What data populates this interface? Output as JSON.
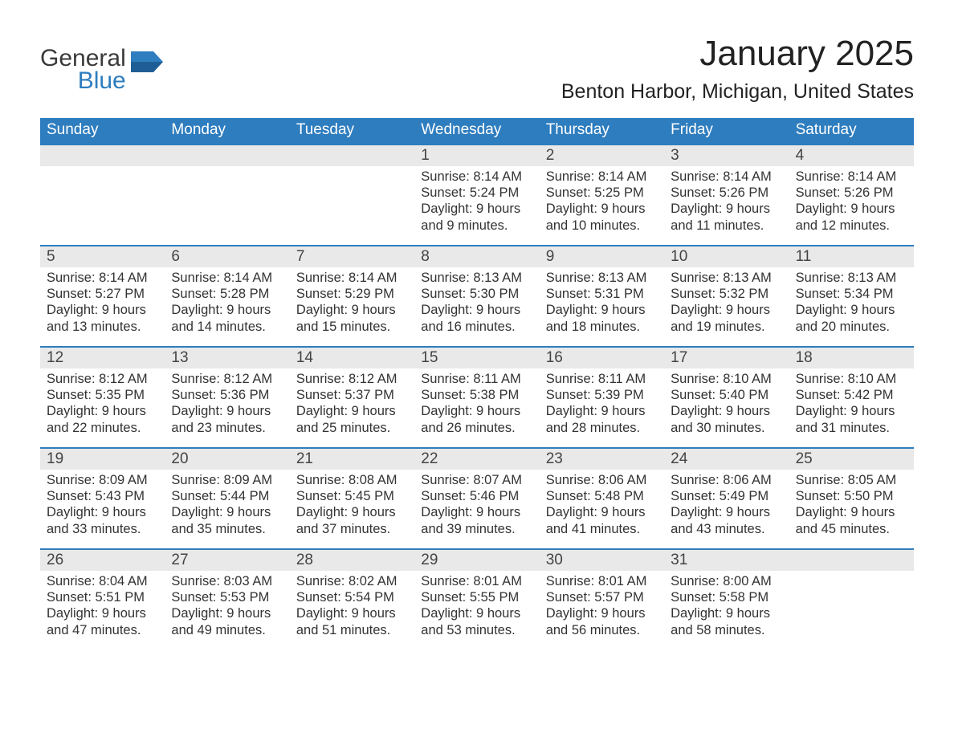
{
  "brand": {
    "word1": "General",
    "word2": "Blue"
  },
  "title": "January 2025",
  "subtitle": "Benton Harbor, Michigan, United States",
  "colors": {
    "header_bg": "#2e7dbf",
    "header_text": "#ffffff",
    "row_border": "#2e7dbf",
    "daynum_bg": "#e9e9e9",
    "body_text": "#333333",
    "page_bg": "#ffffff"
  },
  "font_sizes_pt": {
    "title": 33,
    "subtitle": 19,
    "weekday": 14,
    "daynum": 14,
    "body": 12
  },
  "weekdays": [
    "Sunday",
    "Monday",
    "Tuesday",
    "Wednesday",
    "Thursday",
    "Friday",
    "Saturday"
  ],
  "weeks": [
    [
      null,
      null,
      null,
      {
        "n": "1",
        "sunrise": "Sunrise: 8:14 AM",
        "sunset": "Sunset: 5:24 PM",
        "dl1": "Daylight: 9 hours",
        "dl2": "and 9 minutes."
      },
      {
        "n": "2",
        "sunrise": "Sunrise: 8:14 AM",
        "sunset": "Sunset: 5:25 PM",
        "dl1": "Daylight: 9 hours",
        "dl2": "and 10 minutes."
      },
      {
        "n": "3",
        "sunrise": "Sunrise: 8:14 AM",
        "sunset": "Sunset: 5:26 PM",
        "dl1": "Daylight: 9 hours",
        "dl2": "and 11 minutes."
      },
      {
        "n": "4",
        "sunrise": "Sunrise: 8:14 AM",
        "sunset": "Sunset: 5:26 PM",
        "dl1": "Daylight: 9 hours",
        "dl2": "and 12 minutes."
      }
    ],
    [
      {
        "n": "5",
        "sunrise": "Sunrise: 8:14 AM",
        "sunset": "Sunset: 5:27 PM",
        "dl1": "Daylight: 9 hours",
        "dl2": "and 13 minutes."
      },
      {
        "n": "6",
        "sunrise": "Sunrise: 8:14 AM",
        "sunset": "Sunset: 5:28 PM",
        "dl1": "Daylight: 9 hours",
        "dl2": "and 14 minutes."
      },
      {
        "n": "7",
        "sunrise": "Sunrise: 8:14 AM",
        "sunset": "Sunset: 5:29 PM",
        "dl1": "Daylight: 9 hours",
        "dl2": "and 15 minutes."
      },
      {
        "n": "8",
        "sunrise": "Sunrise: 8:13 AM",
        "sunset": "Sunset: 5:30 PM",
        "dl1": "Daylight: 9 hours",
        "dl2": "and 16 minutes."
      },
      {
        "n": "9",
        "sunrise": "Sunrise: 8:13 AM",
        "sunset": "Sunset: 5:31 PM",
        "dl1": "Daylight: 9 hours",
        "dl2": "and 18 minutes."
      },
      {
        "n": "10",
        "sunrise": "Sunrise: 8:13 AM",
        "sunset": "Sunset: 5:32 PM",
        "dl1": "Daylight: 9 hours",
        "dl2": "and 19 minutes."
      },
      {
        "n": "11",
        "sunrise": "Sunrise: 8:13 AM",
        "sunset": "Sunset: 5:34 PM",
        "dl1": "Daylight: 9 hours",
        "dl2": "and 20 minutes."
      }
    ],
    [
      {
        "n": "12",
        "sunrise": "Sunrise: 8:12 AM",
        "sunset": "Sunset: 5:35 PM",
        "dl1": "Daylight: 9 hours",
        "dl2": "and 22 minutes."
      },
      {
        "n": "13",
        "sunrise": "Sunrise: 8:12 AM",
        "sunset": "Sunset: 5:36 PM",
        "dl1": "Daylight: 9 hours",
        "dl2": "and 23 minutes."
      },
      {
        "n": "14",
        "sunrise": "Sunrise: 8:12 AM",
        "sunset": "Sunset: 5:37 PM",
        "dl1": "Daylight: 9 hours",
        "dl2": "and 25 minutes."
      },
      {
        "n": "15",
        "sunrise": "Sunrise: 8:11 AM",
        "sunset": "Sunset: 5:38 PM",
        "dl1": "Daylight: 9 hours",
        "dl2": "and 26 minutes."
      },
      {
        "n": "16",
        "sunrise": "Sunrise: 8:11 AM",
        "sunset": "Sunset: 5:39 PM",
        "dl1": "Daylight: 9 hours",
        "dl2": "and 28 minutes."
      },
      {
        "n": "17",
        "sunrise": "Sunrise: 8:10 AM",
        "sunset": "Sunset: 5:40 PM",
        "dl1": "Daylight: 9 hours",
        "dl2": "and 30 minutes."
      },
      {
        "n": "18",
        "sunrise": "Sunrise: 8:10 AM",
        "sunset": "Sunset: 5:42 PM",
        "dl1": "Daylight: 9 hours",
        "dl2": "and 31 minutes."
      }
    ],
    [
      {
        "n": "19",
        "sunrise": "Sunrise: 8:09 AM",
        "sunset": "Sunset: 5:43 PM",
        "dl1": "Daylight: 9 hours",
        "dl2": "and 33 minutes."
      },
      {
        "n": "20",
        "sunrise": "Sunrise: 8:09 AM",
        "sunset": "Sunset: 5:44 PM",
        "dl1": "Daylight: 9 hours",
        "dl2": "and 35 minutes."
      },
      {
        "n": "21",
        "sunrise": "Sunrise: 8:08 AM",
        "sunset": "Sunset: 5:45 PM",
        "dl1": "Daylight: 9 hours",
        "dl2": "and 37 minutes."
      },
      {
        "n": "22",
        "sunrise": "Sunrise: 8:07 AM",
        "sunset": "Sunset: 5:46 PM",
        "dl1": "Daylight: 9 hours",
        "dl2": "and 39 minutes."
      },
      {
        "n": "23",
        "sunrise": "Sunrise: 8:06 AM",
        "sunset": "Sunset: 5:48 PM",
        "dl1": "Daylight: 9 hours",
        "dl2": "and 41 minutes."
      },
      {
        "n": "24",
        "sunrise": "Sunrise: 8:06 AM",
        "sunset": "Sunset: 5:49 PM",
        "dl1": "Daylight: 9 hours",
        "dl2": "and 43 minutes."
      },
      {
        "n": "25",
        "sunrise": "Sunrise: 8:05 AM",
        "sunset": "Sunset: 5:50 PM",
        "dl1": "Daylight: 9 hours",
        "dl2": "and 45 minutes."
      }
    ],
    [
      {
        "n": "26",
        "sunrise": "Sunrise: 8:04 AM",
        "sunset": "Sunset: 5:51 PM",
        "dl1": "Daylight: 9 hours",
        "dl2": "and 47 minutes."
      },
      {
        "n": "27",
        "sunrise": "Sunrise: 8:03 AM",
        "sunset": "Sunset: 5:53 PM",
        "dl1": "Daylight: 9 hours",
        "dl2": "and 49 minutes."
      },
      {
        "n": "28",
        "sunrise": "Sunrise: 8:02 AM",
        "sunset": "Sunset: 5:54 PM",
        "dl1": "Daylight: 9 hours",
        "dl2": "and 51 minutes."
      },
      {
        "n": "29",
        "sunrise": "Sunrise: 8:01 AM",
        "sunset": "Sunset: 5:55 PM",
        "dl1": "Daylight: 9 hours",
        "dl2": "and 53 minutes."
      },
      {
        "n": "30",
        "sunrise": "Sunrise: 8:01 AM",
        "sunset": "Sunset: 5:57 PM",
        "dl1": "Daylight: 9 hours",
        "dl2": "and 56 minutes."
      },
      {
        "n": "31",
        "sunrise": "Sunrise: 8:00 AM",
        "sunset": "Sunset: 5:58 PM",
        "dl1": "Daylight: 9 hours",
        "dl2": "and 58 minutes."
      },
      null
    ]
  ]
}
